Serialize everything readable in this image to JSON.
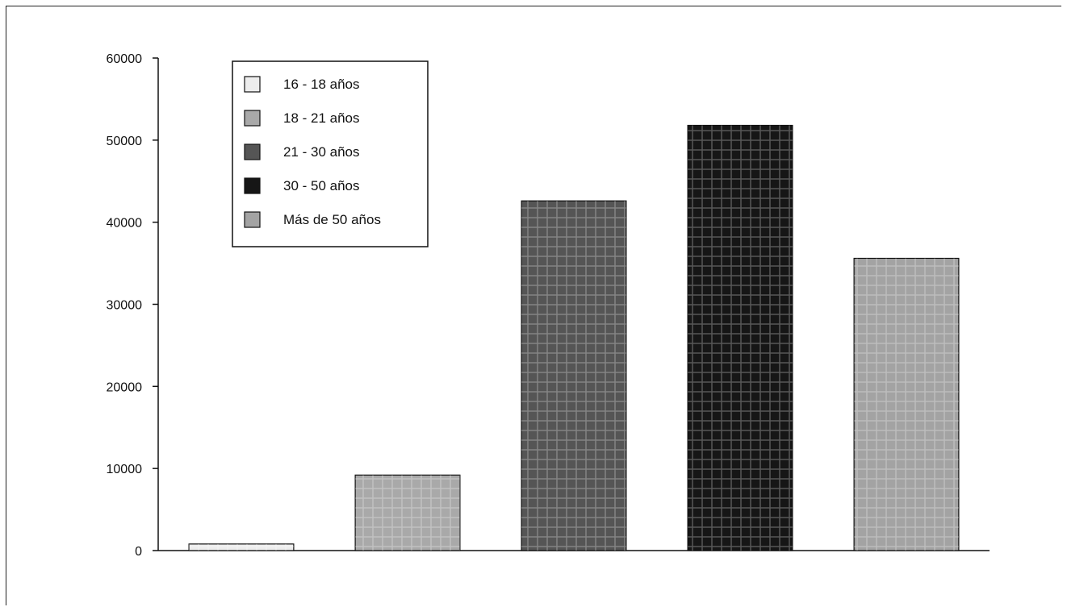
{
  "chart_data": {
    "type": "bar",
    "title": "",
    "xlabel": "",
    "ylabel": "",
    "ylim": [
      0,
      60000
    ],
    "yticks": [
      0,
      10000,
      20000,
      30000,
      40000,
      50000,
      60000
    ],
    "grid": false,
    "legend_position": "top-left",
    "categories": [
      "16 - 18 años",
      "18 - 21 años",
      "21 - 30 años",
      "30 - 50 años",
      "Más de 50 años"
    ],
    "values": [
      800,
      9200,
      42600,
      51800,
      35600
    ],
    "colors": [
      "#ededed",
      "#a9a9a9",
      "#555555",
      "#161616",
      "#a3a3a3"
    ]
  }
}
